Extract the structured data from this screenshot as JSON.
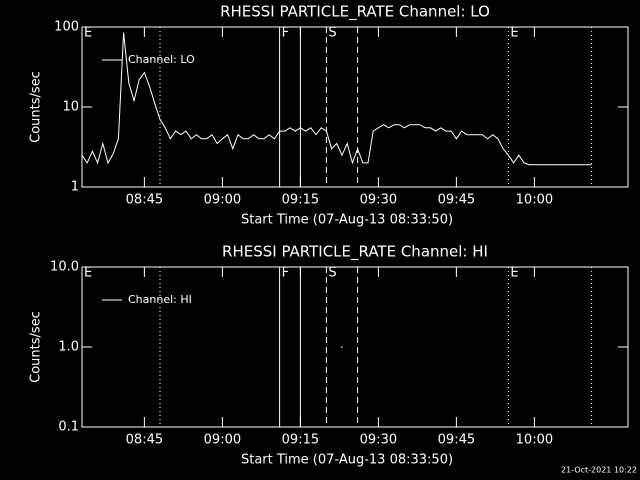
{
  "chart_data": [
    {
      "type": "line",
      "title": "RHESSI PARTICLE_RATE Channel: LO",
      "xlabel": "Start Time (07-Aug-13 08:33:50)",
      "ylabel": "Counts/sec",
      "x": [
        "08:33",
        "08:34",
        "08:35",
        "08:36",
        "08:37",
        "08:38",
        "08:39",
        "08:40",
        "08:41",
        "08:42",
        "08:43",
        "08:44",
        "08:45",
        "08:46",
        "08:47",
        "08:48",
        "08:49",
        "08:50",
        "08:51",
        "08:52",
        "08:53",
        "08:54",
        "08:55",
        "08:56",
        "08:57",
        "08:58",
        "08:59",
        "09:00",
        "09:01",
        "09:02",
        "09:03",
        "09:04",
        "09:05",
        "09:06",
        "09:07",
        "09:08",
        "09:09",
        "09:10",
        "09:11",
        "09:12",
        "09:13",
        "09:14",
        "09:15",
        "09:16",
        "09:17",
        "09:18",
        "09:19",
        "09:20",
        "09:21",
        "09:22",
        "09:23",
        "09:24",
        "09:25",
        "09:26",
        "09:27",
        "09:28",
        "09:29",
        "09:30",
        "09:31",
        "09:32",
        "09:33",
        "09:34",
        "09:35",
        "09:36",
        "09:37",
        "09:38",
        "09:39",
        "09:40",
        "09:41",
        "09:42",
        "09:43",
        "09:44",
        "09:45",
        "09:46",
        "09:47",
        "09:48",
        "09:49",
        "09:50",
        "09:51",
        "09:52",
        "09:53",
        "09:54",
        "09:55",
        "09:56",
        "09:57",
        "09:58",
        "09:59",
        "10:11"
      ],
      "series": [
        {
          "name": "Channel: LO",
          "color": "#ffffff",
          "values": [
            2.5,
            2,
            2.8,
            2,
            3.5,
            2,
            2.6,
            4,
            85,
            20,
            12,
            22,
            27,
            18,
            11,
            7,
            5.5,
            4,
            5,
            4.5,
            5,
            4,
            4.5,
            4,
            4,
            4.5,
            3.5,
            4,
            4.5,
            3,
            4.5,
            4,
            4,
            4.5,
            4,
            4,
            4.5,
            4,
            5,
            5,
            5.5,
            5,
            5.5,
            5,
            5.5,
            4.5,
            5.5,
            5,
            3,
            3.5,
            2.5,
            3.5,
            2,
            3,
            2,
            2,
            5,
            5.5,
            6,
            5.5,
            6,
            6,
            5.5,
            6,
            6,
            6,
            5.5,
            5.5,
            5,
            5.5,
            5,
            5,
            4,
            5,
            4.5,
            4.5,
            4.5,
            4.5,
            4,
            4.5,
            4,
            3,
            2.5,
            2,
            2.5,
            2,
            1.9,
            1.9
          ]
        }
      ],
      "xlim": [
        "08:33",
        "10:18"
      ],
      "xticks": [
        "08:45",
        "09:00",
        "09:15",
        "09:30",
        "09:45",
        "10:00"
      ],
      "ylim": [
        1,
        100
      ],
      "yticks": [
        1,
        10,
        100
      ],
      "log_y": true,
      "vlines": [
        {
          "x": "08:48",
          "style": "dotted"
        },
        {
          "x": "09:11",
          "style": "solid"
        },
        {
          "x": "09:15",
          "style": "solid"
        },
        {
          "x": "09:20",
          "style": "dashed"
        },
        {
          "x": "09:26",
          "style": "dashed"
        },
        {
          "x": "09:55",
          "style": "dotted"
        },
        {
          "x": "10:11",
          "style": "dotted"
        }
      ],
      "annotations": [
        {
          "text": "E",
          "x": "08:33"
        },
        {
          "text": "F",
          "x": "09:11"
        },
        {
          "text": "S",
          "x": "09:20"
        },
        {
          "text": "E",
          "x": "09:55"
        }
      ]
    },
    {
      "type": "line",
      "title": "RHESSI PARTICLE_RATE Channel: HI",
      "xlabel": "Start Time (07-Aug-13 08:33:50)",
      "ylabel": "Counts/sec",
      "x": [
        "09:23"
      ],
      "series": [
        {
          "name": "Channel: HI",
          "color": "#ffffff",
          "values": [
            1.0
          ]
        }
      ],
      "xlim": [
        "08:33",
        "10:18"
      ],
      "xticks": [
        "08:45",
        "09:00",
        "09:15",
        "09:30",
        "09:45",
        "10:00"
      ],
      "ylim": [
        0.1,
        10
      ],
      "yticks": [
        0.1,
        {
          "value": 1,
          "label": "1.0"
        },
        {
          "value": 10,
          "label": "10.0"
        }
      ],
      "log_y": true,
      "vlines": [
        {
          "x": "08:48",
          "style": "dotted"
        },
        {
          "x": "09:11",
          "style": "solid"
        },
        {
          "x": "09:15",
          "style": "solid"
        },
        {
          "x": "09:20",
          "style": "dashed"
        },
        {
          "x": "09:26",
          "style": "dashed"
        },
        {
          "x": "09:55",
          "style": "dotted"
        },
        {
          "x": "10:11",
          "style": "dotted"
        }
      ],
      "annotations": [
        {
          "text": "E",
          "x": "08:33"
        },
        {
          "text": "F",
          "x": "09:11"
        },
        {
          "text": "S",
          "x": "09:20"
        },
        {
          "text": "E",
          "x": "09:55"
        }
      ]
    }
  ],
  "footer": "21-Oct-2021 10:22"
}
